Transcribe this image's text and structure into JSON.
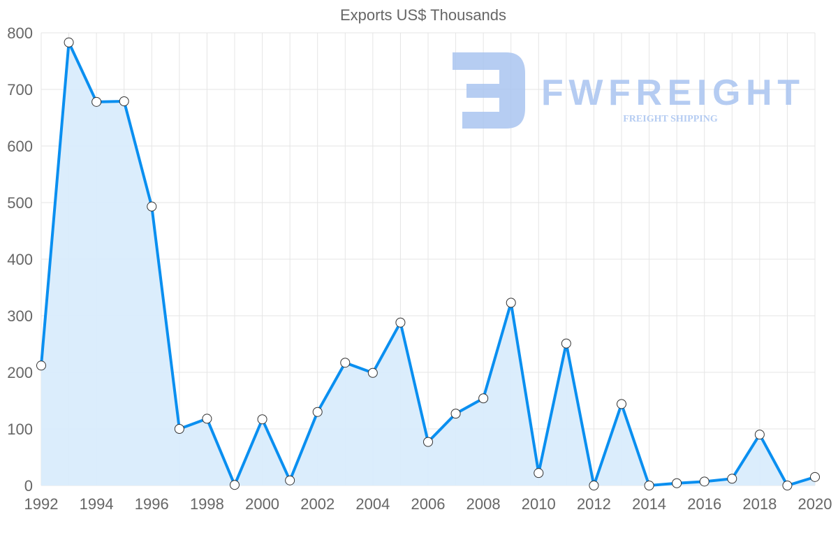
{
  "chart_data": {
    "type": "line",
    "title": "Exports US$ Thousands",
    "xlabel": "",
    "ylabel": "",
    "x": [
      1992,
      1993,
      1994,
      1995,
      1996,
      1997,
      1998,
      1999,
      2000,
      2001,
      2002,
      2003,
      2004,
      2005,
      2006,
      2007,
      2008,
      2009,
      2010,
      2011,
      2012,
      2013,
      2014,
      2015,
      2016,
      2017,
      2018,
      2019,
      2020
    ],
    "series": [
      {
        "name": "Exports US$ Thousands",
        "values": [
          212,
          783,
          678,
          679,
          493,
          100,
          118,
          1,
          117,
          9,
          130,
          217,
          199,
          288,
          77,
          127,
          154,
          323,
          22,
          251,
          0,
          144,
          0,
          4,
          7,
          12,
          90,
          0,
          15
        ]
      }
    ],
    "xticks": [
      "1992",
      "1994",
      "1996",
      "1998",
      "2000",
      "2002",
      "2004",
      "2006",
      "2008",
      "2010",
      "2012",
      "2014",
      "2016",
      "2018",
      "2020"
    ],
    "yticks": [
      "0",
      "100",
      "200",
      "300",
      "400",
      "500",
      "600",
      "700",
      "800"
    ],
    "xlim": [
      1992,
      2020
    ],
    "ylim": [
      0,
      800
    ],
    "grid": true,
    "fill": true,
    "colors": {
      "line": "#0a8ff0",
      "fill": "#d9ecfc",
      "grid": "#e5e5e5",
      "point_fill": "#ffffff",
      "point_stroke": "#333333"
    }
  },
  "watermark": {
    "brand": "FWFREIGHT",
    "tagline": "FREIGHT SHIPPING",
    "color": "#a9c4f0"
  }
}
